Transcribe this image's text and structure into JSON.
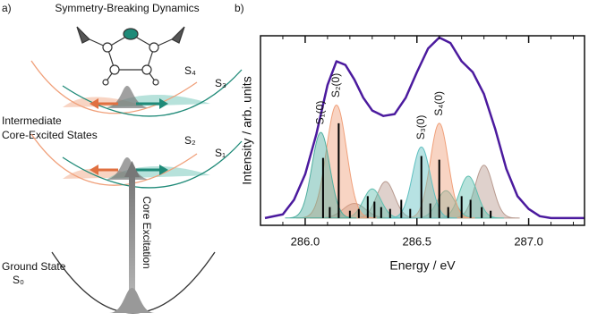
{
  "panel_a": {
    "label": "a)",
    "title": "Symmetry-Breaking Dynamics",
    "states_upper": [
      "S₄",
      "S₃"
    ],
    "intermediate_label": [
      "Intermediate",
      "Core-Excited States"
    ],
    "states_lower": [
      "S₂",
      "S₁"
    ],
    "excitation_label": "Core Excitation",
    "ground_label": "Ground State",
    "ground_state": "S₀"
  },
  "panel_b_label": "b)",
  "chart_data": {
    "type": "line",
    "xlabel": "Energy / eV",
    "ylabel": "Intensity / arb. units",
    "xlim": [
      285.8,
      287.25
    ],
    "ylim": [
      -0.04,
      1.0
    ],
    "xticks": [
      {
        "value": 286,
        "label": "286.0"
      },
      {
        "value": 286.5,
        "label": "286.5"
      },
      {
        "value": 287,
        "label": "287.0"
      }
    ],
    "xminorticks": [
      285.8,
      285.9,
      286.1,
      286.2,
      286.3,
      286.4,
      286.6,
      286.7,
      286.8,
      286.9,
      287.1,
      287.2
    ],
    "x": [
      285.82,
      285.9,
      285.95,
      286.0,
      286.05,
      286.1,
      286.14,
      286.18,
      286.22,
      286.26,
      286.3,
      286.35,
      286.4,
      286.45,
      286.5,
      286.55,
      286.6,
      286.65,
      286.7,
      286.75,
      286.8,
      286.85,
      286.9,
      286.95,
      287.0,
      287.05,
      287.1,
      287.25
    ],
    "values": [
      0.0,
      0.02,
      0.1,
      0.24,
      0.46,
      0.73,
      0.86,
      0.84,
      0.76,
      0.66,
      0.59,
      0.56,
      0.57,
      0.66,
      0.8,
      0.93,
      0.99,
      0.96,
      0.86,
      0.8,
      0.68,
      0.49,
      0.27,
      0.12,
      0.05,
      0.01,
      0.0,
      0.0
    ],
    "color": "#4b1a9e",
    "peaks": [
      {
        "center": 286.22,
        "height": 0.08,
        "width": 0.05,
        "color": "#b89a8f"
      },
      {
        "center": 286.36,
        "height": 0.2,
        "width": 0.04,
        "color": "#b89a8f"
      },
      {
        "center": 286.8,
        "height": 0.29,
        "width": 0.04,
        "color": "#b89a8f"
      },
      {
        "center": 286.3,
        "height": 0.16,
        "width": 0.04,
        "color": "#5fbfb0"
      },
      {
        "center": 286.63,
        "height": 0.15,
        "width": 0.04,
        "color": "#5fbfb0"
      },
      {
        "center": 286.73,
        "height": 0.23,
        "width": 0.04,
        "color": "#5fbfb0"
      },
      {
        "center": 286.14,
        "height": 0.62,
        "width": 0.045,
        "color": "#f0a07a",
        "label": "S₂(0)"
      },
      {
        "center": 286.6,
        "height": 0.52,
        "width": 0.04,
        "color": "#f0a07a",
        "label": "S₄(0)"
      },
      {
        "center": 286.07,
        "height": 0.47,
        "width": 0.04,
        "color": "#4fae9f",
        "label": "S₁(0)"
      },
      {
        "center": 286.52,
        "height": 0.39,
        "width": 0.04,
        "color": "#5fbfc0",
        "label": "S₃(0)"
      }
    ],
    "sticks": {
      "x": [
        286.08,
        286.11,
        286.15,
        286.2,
        286.24,
        286.28,
        286.31,
        286.34,
        286.38,
        286.43,
        286.47,
        286.52,
        286.56,
        286.6,
        286.64,
        286.7,
        286.74,
        286.79,
        286.83
      ],
      "values": [
        0.33,
        0.06,
        0.52,
        0.04,
        0.05,
        0.12,
        0.09,
        0.06,
        0.05,
        0.1,
        0.05,
        0.34,
        0.08,
        0.32,
        0.06,
        0.12,
        0.1,
        0.06,
        0.04
      ],
      "color": "#000000"
    }
  }
}
